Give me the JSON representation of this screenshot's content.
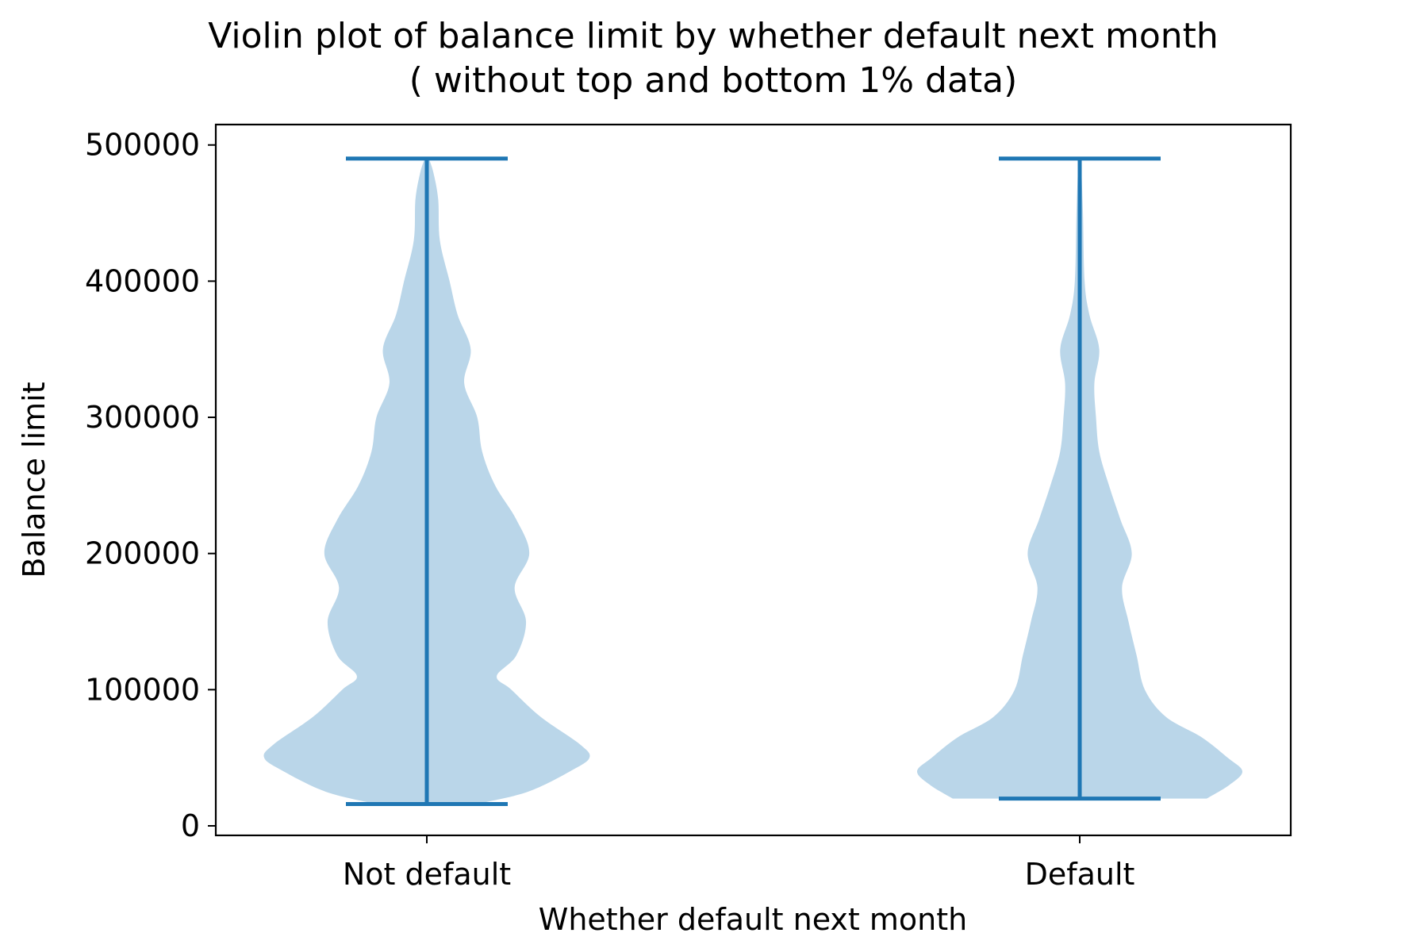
{
  "chart_data": {
    "type": "violin",
    "title": "Violin plot of balance limit by whether default next month",
    "subtitle": "( without top and bottom 1% data)",
    "xlabel": "Whether default next month",
    "ylabel": "Balance limit",
    "ylim": [
      -7000,
      515000
    ],
    "yticks": [
      0,
      100000,
      200000,
      300000,
      400000,
      500000
    ],
    "yticklabels": [
      "0",
      "100000",
      "200000",
      "300000",
      "400000",
      "500000"
    ],
    "grid": false,
    "categories": [
      "Not default",
      "Default"
    ],
    "colors": {
      "body": "#bad6e9",
      "lines": "#1f77b4",
      "axes": "#000000"
    },
    "series": [
      {
        "min": 16000,
        "max": 490000,
        "profile": [
          [
            16000,
            0.31
          ],
          [
            25000,
            0.62
          ],
          [
            40000,
            0.88
          ],
          [
            50000,
            1.0
          ],
          [
            60000,
            0.94
          ],
          [
            80000,
            0.7
          ],
          [
            100000,
            0.52
          ],
          [
            110000,
            0.43
          ],
          [
            125000,
            0.55
          ],
          [
            150000,
            0.61
          ],
          [
            175000,
            0.54
          ],
          [
            200000,
            0.63
          ],
          [
            225000,
            0.55
          ],
          [
            250000,
            0.42
          ],
          [
            275000,
            0.34
          ],
          [
            300000,
            0.31
          ],
          [
            325000,
            0.23
          ],
          [
            350000,
            0.27
          ],
          [
            375000,
            0.19
          ],
          [
            400000,
            0.14
          ],
          [
            430000,
            0.08
          ],
          [
            460000,
            0.07
          ],
          [
            480000,
            0.04
          ],
          [
            490000,
            0.012
          ]
        ]
      },
      {
        "min": 20000,
        "max": 490000,
        "profile": [
          [
            20000,
            0.78
          ],
          [
            30000,
            0.92
          ],
          [
            40000,
            1.0
          ],
          [
            50000,
            0.91
          ],
          [
            65000,
            0.75
          ],
          [
            80000,
            0.53
          ],
          [
            100000,
            0.4
          ],
          [
            125000,
            0.35
          ],
          [
            150000,
            0.3
          ],
          [
            175000,
            0.26
          ],
          [
            200000,
            0.32
          ],
          [
            225000,
            0.25
          ],
          [
            250000,
            0.18
          ],
          [
            275000,
            0.12
          ],
          [
            300000,
            0.1
          ],
          [
            325000,
            0.09
          ],
          [
            350000,
            0.12
          ],
          [
            375000,
            0.06
          ],
          [
            400000,
            0.03
          ],
          [
            450000,
            0.02
          ],
          [
            490000,
            0.008
          ]
        ]
      }
    ]
  }
}
